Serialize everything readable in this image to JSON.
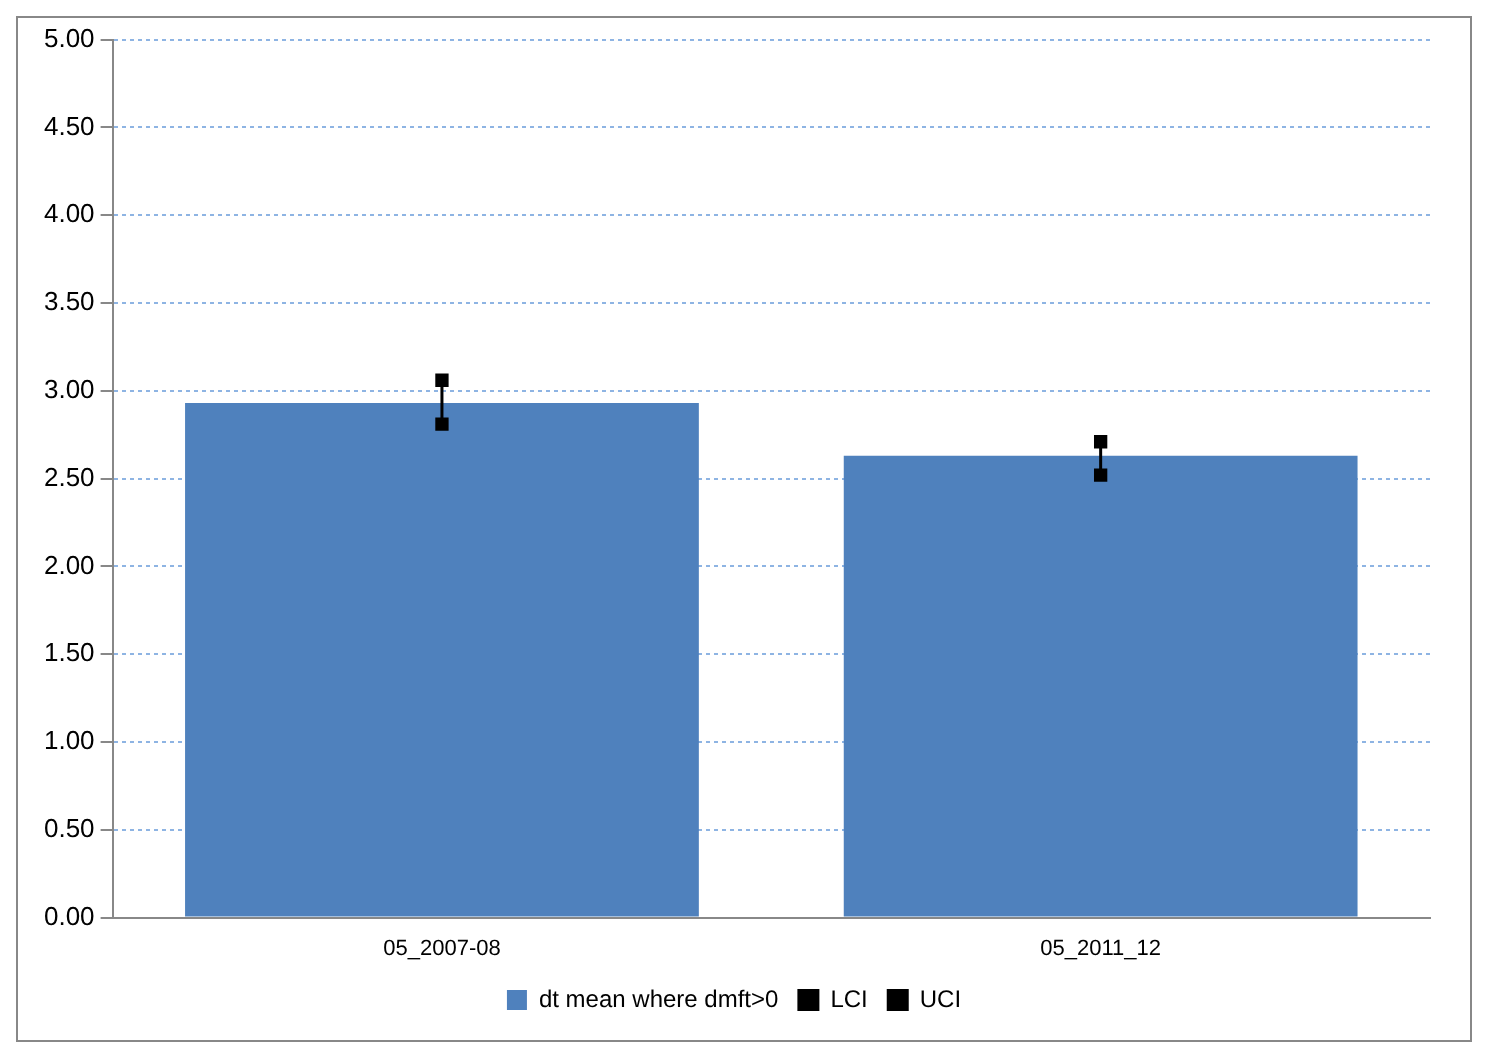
{
  "chart_data": {
    "type": "bar",
    "categories": [
      "05_2007-08",
      "05_2011_12"
    ],
    "series": [
      {
        "name": "dt mean where dmft>0",
        "type": "bar",
        "color": "#4f81bd",
        "values": [
          2.93,
          2.63
        ]
      },
      {
        "name": "LCI",
        "type": "scatter",
        "color": "#000000",
        "x": [
          "05_2007-08",
          "05_2011_12"
        ],
        "values": [
          2.81,
          2.52
        ]
      },
      {
        "name": "UCI",
        "type": "scatter",
        "color": "#000000",
        "x": [
          "05_2007-08",
          "05_2011_12"
        ],
        "values": [
          3.06,
          2.71
        ]
      }
    ],
    "ylim": [
      0,
      5
    ],
    "yticks": [
      {
        "value": 0,
        "label": "0.00"
      },
      {
        "value": 0.5,
        "label": "0.50"
      },
      {
        "value": 1,
        "label": "1.00"
      },
      {
        "value": 1.5,
        "label": "1.50"
      },
      {
        "value": 2,
        "label": "2.00"
      },
      {
        "value": 2.5,
        "label": "2.50"
      },
      {
        "value": 3,
        "label": "3.00"
      },
      {
        "value": 3.5,
        "label": "3.50"
      },
      {
        "value": 4,
        "label": "4.00"
      },
      {
        "value": 4.5,
        "label": "4.50"
      },
      {
        "value": 5,
        "label": "5.00"
      }
    ],
    "grid": "y",
    "marker": "square",
    "legend": "bottom"
  }
}
